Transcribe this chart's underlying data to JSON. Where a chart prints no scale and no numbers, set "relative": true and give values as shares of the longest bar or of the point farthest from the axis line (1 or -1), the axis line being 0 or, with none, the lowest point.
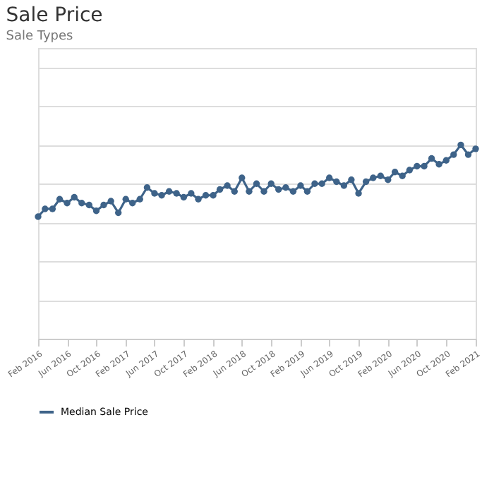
{
  "chart_data": {
    "type": "line",
    "title": "Sale Price",
    "subtitle": "Sale Types",
    "relative": true,
    "grid": "y",
    "legend": "bottom",
    "marker": "circle",
    "line_style": "solid",
    "x": [
      "2016-02",
      "2016-03",
      "2016-04",
      "2016-05",
      "2016-06",
      "2016-07",
      "2016-08",
      "2016-09",
      "2016-10",
      "2016-11",
      "2016-12",
      "2017-01",
      "2017-02",
      "2017-03",
      "2017-04",
      "2017-05",
      "2017-06",
      "2017-07",
      "2017-08",
      "2017-09",
      "2017-10",
      "2017-11",
      "2017-12",
      "2018-01",
      "2018-02",
      "2018-03",
      "2018-04",
      "2018-05",
      "2018-06",
      "2018-07",
      "2018-08",
      "2018-09",
      "2018-10",
      "2018-11",
      "2018-12",
      "2019-01",
      "2019-02",
      "2019-03",
      "2019-04",
      "2019-05",
      "2019-06",
      "2019-07",
      "2019-08",
      "2019-09",
      "2019-10",
      "2019-11",
      "2019-12",
      "2020-01",
      "2020-02",
      "2020-03",
      "2020-04",
      "2020-05",
      "2020-06",
      "2020-07",
      "2020-08",
      "2020-09",
      "2020-10",
      "2020-11",
      "2020-12",
      "2021-01",
      "2021-02"
    ],
    "xlim": [
      "2016-02",
      "2021-02"
    ],
    "xticks": [
      {
        "value": "2016-02",
        "label": "Feb 2016"
      },
      {
        "value": "2016-06",
        "label": "Jun 2016"
      },
      {
        "value": "2016-10",
        "label": "Oct 2016"
      },
      {
        "value": "2017-02",
        "label": "Feb 2017"
      },
      {
        "value": "2017-06",
        "label": "Jun 2017"
      },
      {
        "value": "2017-10",
        "label": "Oct 2017"
      },
      {
        "value": "2018-02",
        "label": "Feb 2018"
      },
      {
        "value": "2018-06",
        "label": "Jun 2018"
      },
      {
        "value": "2018-10",
        "label": "Oct 2018"
      },
      {
        "value": "2019-02",
        "label": "Feb 2019"
      },
      {
        "value": "2019-06",
        "label": "Jun 2019"
      },
      {
        "value": "2019-10",
        "label": "Oct 2019"
      },
      {
        "value": "2020-02",
        "label": "Feb 2020"
      },
      {
        "value": "2020-06",
        "label": "Jun 2020"
      },
      {
        "value": "2020-10",
        "label": "Oct 2020"
      },
      {
        "value": "2021-02",
        "label": "Feb 2021"
      }
    ],
    "series": [
      {
        "name": "Median Sale Price",
        "color": "#3e6389",
        "values": [
          0.63,
          0.67,
          0.67,
          0.72,
          0.7,
          0.73,
          0.7,
          0.69,
          0.66,
          0.69,
          0.71,
          0.65,
          0.72,
          0.7,
          0.72,
          0.78,
          0.75,
          0.74,
          0.76,
          0.75,
          0.73,
          0.75,
          0.72,
          0.74,
          0.74,
          0.77,
          0.79,
          0.76,
          0.83,
          0.76,
          0.8,
          0.76,
          0.8,
          0.77,
          0.78,
          0.76,
          0.79,
          0.76,
          0.8,
          0.8,
          0.83,
          0.81,
          0.79,
          0.82,
          0.75,
          0.81,
          0.83,
          0.84,
          0.82,
          0.86,
          0.84,
          0.87,
          0.89,
          0.89,
          0.93,
          0.9,
          0.92,
          0.95,
          1.0,
          0.95,
          0.98
        ]
      }
    ]
  }
}
